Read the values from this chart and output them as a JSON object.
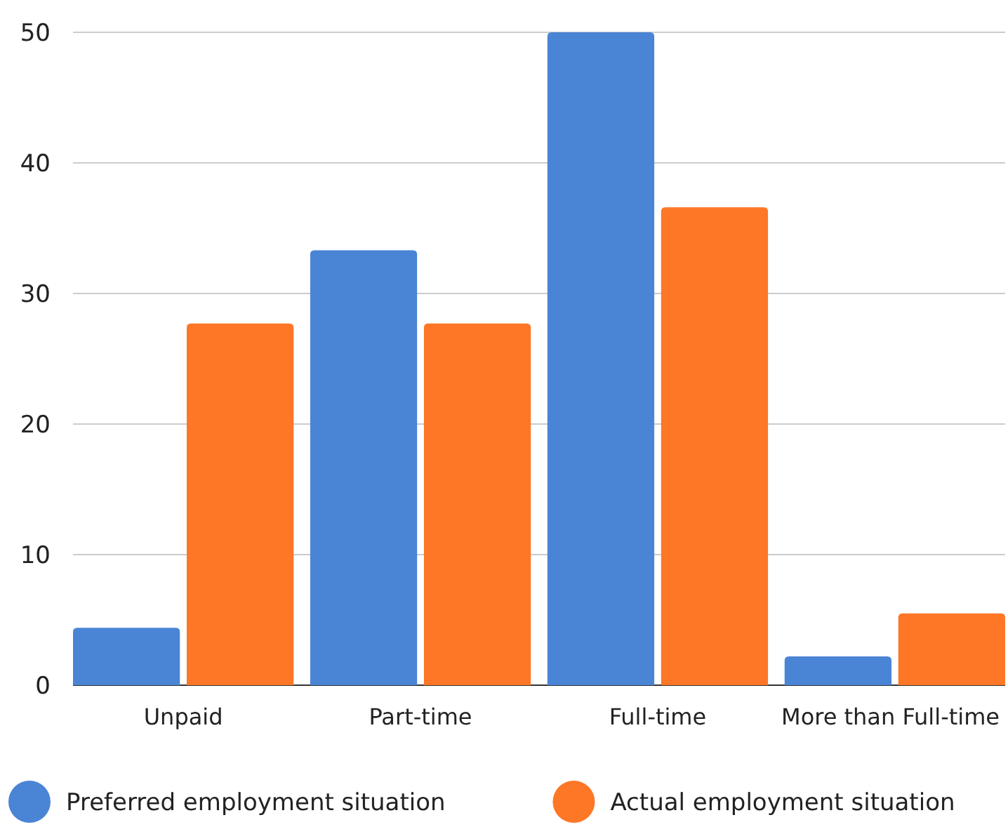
{
  "chart_data": {
    "type": "bar",
    "categories": [
      "Unpaid",
      "Part-time",
      "Full-time",
      "More than Full-time"
    ],
    "series": [
      {
        "name": "Preferred employment situation",
        "color": "#4a84d5",
        "values": [
          4.4,
          33.3,
          50,
          2.2
        ]
      },
      {
        "name": "Actual employment situation",
        "color": "#fd7727",
        "values": [
          27.7,
          27.7,
          36.6,
          5.5
        ]
      }
    ],
    "ylim": [
      0,
      50
    ],
    "yticks": [
      0,
      10,
      20,
      30,
      40,
      50
    ],
    "grid": "y",
    "legend": "bottom"
  }
}
